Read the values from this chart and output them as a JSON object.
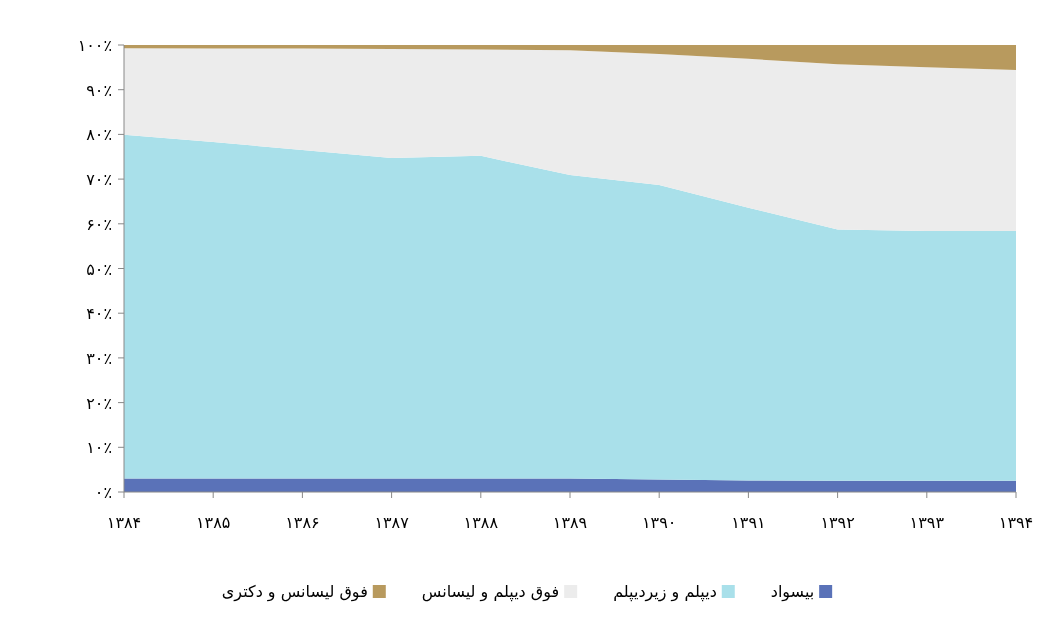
{
  "chart_data": {
    "type": "area",
    "stacked": true,
    "legend": "bottom",
    "grid": false,
    "x": [
      1384,
      1385,
      1386,
      1387,
      1388,
      1389,
      1390,
      1391,
      1392,
      1393,
      1394
    ],
    "xlim": [
      1384,
      1394
    ],
    "xticks": [
      {
        "value": 1384,
        "label": "۱۳۸۴"
      },
      {
        "value": 1385,
        "label": "۱۳۸۵"
      },
      {
        "value": 1386,
        "label": "۱۳۸۶"
      },
      {
        "value": 1387,
        "label": "۱۳۸۷"
      },
      {
        "value": 1388,
        "label": "۱۳۸۸"
      },
      {
        "value": 1389,
        "label": "۱۳۸۹"
      },
      {
        "value": 1390,
        "label": "۱۳۹۰"
      },
      {
        "value": 1391,
        "label": "۱۳۹۱"
      },
      {
        "value": 1392,
        "label": "۱۳۹۲"
      },
      {
        "value": 1393,
        "label": "۱۳۹۳"
      },
      {
        "value": 1394,
        "label": "۱۳۹۴"
      }
    ],
    "ylim": [
      0,
      100
    ],
    "yticks": [
      {
        "value": 0,
        "label": "۰٪"
      },
      {
        "value": 10,
        "label": "۱۰٪"
      },
      {
        "value": 20,
        "label": "۲۰٪"
      },
      {
        "value": 30,
        "label": "۳۰٪"
      },
      {
        "value": 40,
        "label": "۴۰٪"
      },
      {
        "value": 50,
        "label": "۵۰٪"
      },
      {
        "value": 60,
        "label": "۶۰٪"
      },
      {
        "value": 70,
        "label": "۷۰٪"
      },
      {
        "value": 80,
        "label": "۸۰٪"
      },
      {
        "value": 90,
        "label": "۹۰٪"
      },
      {
        "value": 100,
        "label": "۱۰۰٪"
      }
    ],
    "series": [
      {
        "name": "بیسواد",
        "color": "#5a72b8",
        "values": [
          3,
          3,
          3,
          3,
          3,
          3,
          2.8,
          2.6,
          2.5,
          2.5,
          2.5
        ]
      },
      {
        "name": "دیپلم و زیردیپلم",
        "color": "#a9e0ea",
        "values": [
          76.9,
          75.3,
          73.5,
          71.7,
          72.2,
          67.9,
          65.9,
          61.0,
          56.2,
          55.9,
          55.9
        ]
      },
      {
        "name": "فوق دیپلم و لیسانس",
        "color": "#ececec",
        "values": [
          19.4,
          20.9,
          22.7,
          24.4,
          23.8,
          27.9,
          29.3,
          33.3,
          37.0,
          36.6,
          36.0
        ]
      },
      {
        "name": "فوق لیسانس و دکتری",
        "color": "#b89a5e",
        "values": [
          0.7,
          0.8,
          0.8,
          0.9,
          1.0,
          1.2,
          2.0,
          3.1,
          4.3,
          5.0,
          5.6
        ]
      }
    ]
  }
}
